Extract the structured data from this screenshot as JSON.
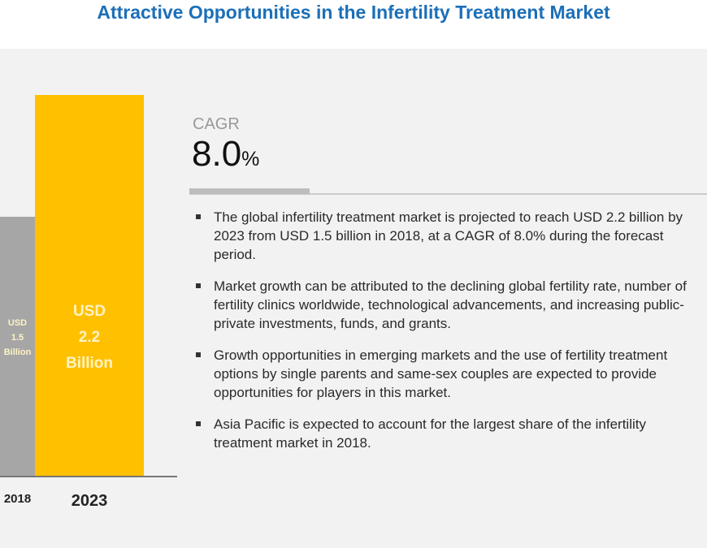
{
  "title": "Attractive Opportunities in the Infertility Treatment Market",
  "colors": {
    "title": "#1c6fb8",
    "bar_2018": "#a6a6a6",
    "bar_2023": "#ffc000",
    "background": "#f2f2f2"
  },
  "chart_data": {
    "type": "bar",
    "categories": [
      "2018",
      "2023"
    ],
    "values": [
      1.5,
      2.2
    ],
    "unit": "USD Billion",
    "data_labels": [
      {
        "line1": "USD",
        "line2": "1.5",
        "line3": "Billion"
      },
      {
        "line1": "USD",
        "line2": "2.2",
        "line3": "Billion"
      }
    ]
  },
  "cagr": {
    "label": "CAGR",
    "value": "8.0",
    "unit": "%"
  },
  "bullets": [
    {
      "lines": [
        "The global infertility treatment market is projected to reach USD 2.2",
        "billion by 2023 from USD 1.5 billion in 2018, at a CAGR of 8.0% during",
        "the forecast period."
      ]
    },
    {
      "lines": [
        "Market growth can be attributed to the declining global fertility rate,",
        "number of fertility clinics worldwide, technological advancements, and",
        "increasing public-private investments, funds, and grants."
      ]
    },
    {
      "lines": [
        "Growth opportunities in emerging markets and the use of fertility",
        "treatment options by single parents and same-sex couples are expected",
        "to provide opportunities for players in this market."
      ]
    },
    {
      "lines": [
        "Asia Pacific is expected to account for the largest share of the infertility",
        "treatment market in 2018."
      ]
    }
  ]
}
